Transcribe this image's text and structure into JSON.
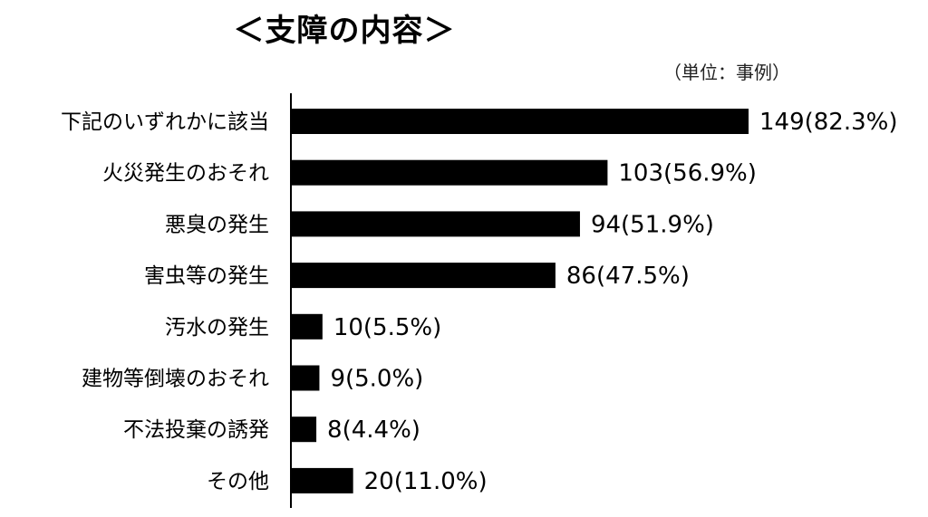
{
  "chart_data": {
    "type": "bar",
    "orientation": "horizontal",
    "title": "＜支障の内容＞",
    "unit": "（単位：事例）",
    "categories": [
      "下記のいずれかに該当",
      "火災発生のおそれ",
      "悪臭の発生",
      "害虫等の発生",
      "汚水の発生",
      "建物等倒壊のおそれ",
      "不法投棄の誘発",
      "その他"
    ],
    "values": [
      149,
      103,
      94,
      86,
      10,
      9,
      8,
      20
    ],
    "value_labels": [
      "149(82.3%)",
      "103(56.9%)",
      "94(51.9%)",
      "86(47.5%)",
      "10(5.5%)",
      "9(5.0%)",
      "8(4.4%)",
      "20(11.0%)"
    ],
    "bar_color": "#000000",
    "grid": false,
    "legend": "none"
  }
}
